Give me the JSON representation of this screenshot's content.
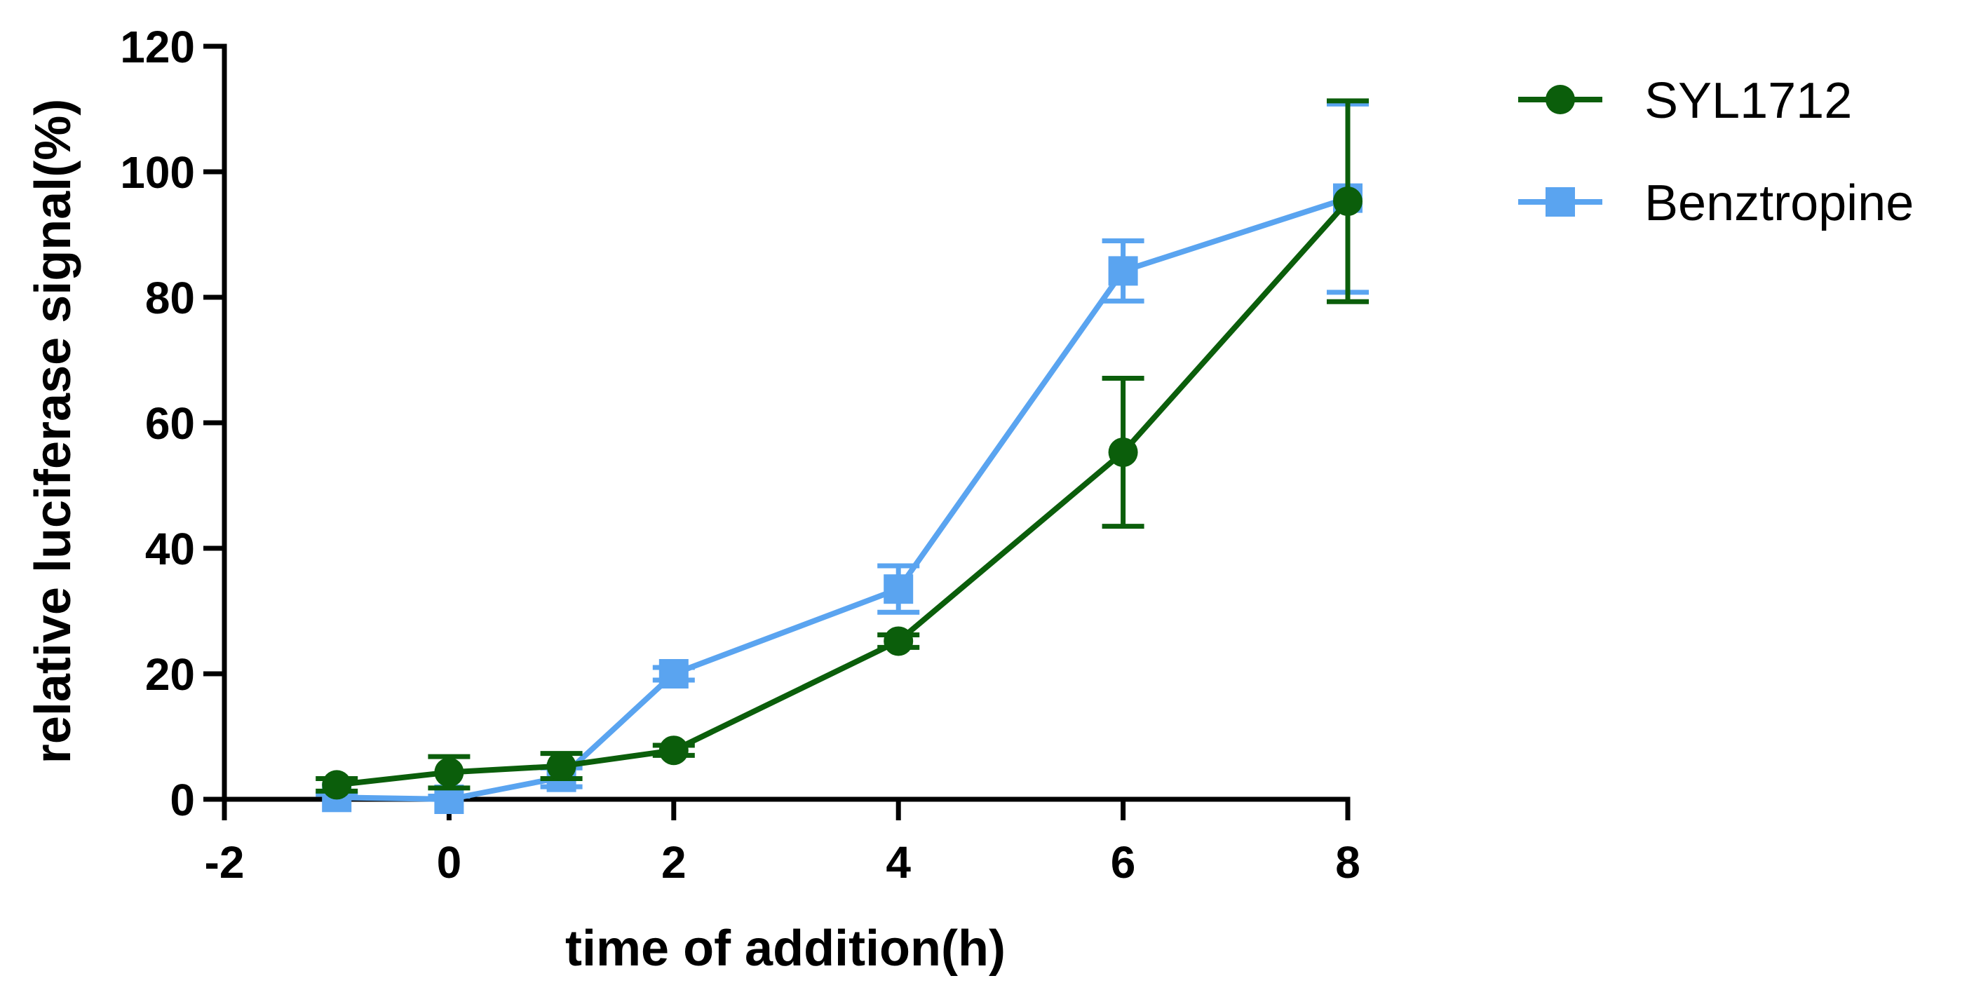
{
  "chart_data": {
    "type": "line",
    "xlabel": "time of addition(h)",
    "ylabel": "relative luciferase signal(%)",
    "xlim": [
      -2,
      8
    ],
    "ylim": [
      0,
      120
    ],
    "xticks": [
      -2,
      0,
      2,
      4,
      6,
      8
    ],
    "yticks": [
      0,
      20,
      40,
      60,
      80,
      100,
      120
    ],
    "grid": false,
    "legend_position": "top-right",
    "series": [
      {
        "name": "SYL1712",
        "color": "#0b5e0b",
        "marker": "circle",
        "x": [
          -1,
          0,
          1,
          2,
          4,
          6,
          8
        ],
        "y": [
          2.3,
          4.3,
          5.3,
          7.8,
          25.2,
          55.3,
          95.3
        ],
        "err": [
          1.0,
          2.5,
          2.0,
          0.8,
          1.0,
          11.8,
          16.0
        ]
      },
      {
        "name": "Benztropine",
        "color": "#5aa4f0",
        "marker": "square",
        "x": [
          -1,
          0,
          1,
          2,
          4,
          6,
          8
        ],
        "y": [
          0.3,
          0.0,
          3.5,
          20.0,
          33.5,
          84.2,
          95.8
        ],
        "err": [
          0.5,
          0.5,
          1.5,
          1.0,
          3.7,
          4.8,
          15.0
        ]
      }
    ]
  }
}
